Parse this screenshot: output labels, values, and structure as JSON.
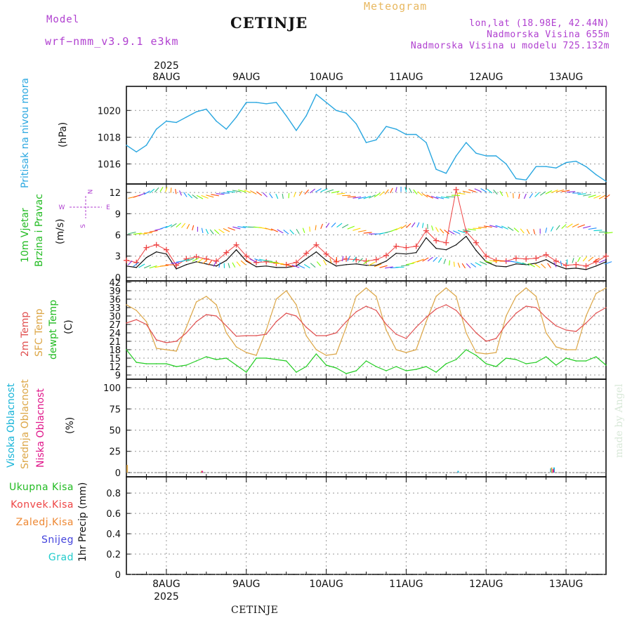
{
  "header": {
    "model_label": "Model",
    "model_version": "wrf−nmm_v3.9.1  e3km",
    "title": "CETINJE",
    "subtitle": "Meteogram",
    "coords": "lon,lat (18.98E, 42.44N)",
    "elevation": "Nadmorska Visina 655m",
    "model_elevation": "Nadmorska Visina u modelu 725.132m"
  },
  "footer": {
    "station": "CETINJE"
  },
  "watermark": "made by Angel",
  "axis": {
    "year": "2025",
    "days": [
      "8AUG",
      "9AUG",
      "10AUG",
      "11AUG",
      "12AUG",
      "13AUG"
    ]
  },
  "colors": {
    "pressure": "#2aa7e0",
    "wind_speed": "#111111",
    "wind_gust": "#ee4444",
    "temp_2m": "#e05050",
    "temp_sfc": "#dca646",
    "dewpoint": "#22cc22",
    "cloud_high": "#18b4d8",
    "cloud_mid": "#dca646",
    "cloud_low": "#e0178a"
  },
  "panels": {
    "pressure": {
      "labels": [
        "Pritisak na nivou mora"
      ],
      "unit": "(hPa)"
    },
    "wind": {
      "labels": [
        "10m Vjetar",
        "Brzina i Pravac"
      ],
      "unit": "(m/s)",
      "compass": [
        "N",
        "W",
        "E",
        "S"
      ]
    },
    "temperature": {
      "labels": [
        "2m Temp",
        "SFC Temp",
        "dewpt Temp"
      ],
      "unit": "(C)"
    },
    "clouds": {
      "labels": [
        "Visoka Oblacnost",
        "Srednja Oblacnost",
        "Niska Oblacnost"
      ],
      "unit": "(%)"
    },
    "precip": {
      "labels": [
        {
          "text": "Ukupna Kisa",
          "color": "#22bb22"
        },
        {
          "text": "Konvek.Kisa",
          "color": "#ee4444"
        },
        {
          "text": "Zaledj.Kisa",
          "color": "#ee8833"
        },
        {
          "text": "Snijeg",
          "color": "#4444dd"
        },
        {
          "text": "Grad",
          "color": "#22cccc"
        }
      ],
      "unit": "1hr Precip (mm)"
    }
  },
  "chart_data": [
    {
      "type": "line",
      "title": "Pritisak na nivou mora",
      "ylabel": "(hPa)",
      "xlabel": "",
      "categories": [
        "8AUG",
        "9AUG",
        "10AUG",
        "11AUG",
        "12AUG",
        "13AUG"
      ],
      "x_unit": "days (0 = 8AUG 00h)",
      "xlim": [
        -0.5,
        5.5
      ],
      "ylim": [
        1014.5,
        1021.8
      ],
      "yticks": [
        1016,
        1018,
        1020
      ],
      "series": [
        {
          "name": "MSLP",
          "x": [
            -0.5,
            -0.375,
            -0.25,
            -0.125,
            0.0,
            0.125,
            0.25,
            0.375,
            0.5,
            0.625,
            0.75,
            0.875,
            1.0,
            1.125,
            1.25,
            1.375,
            1.5,
            1.625,
            1.75,
            1.875,
            2.0,
            2.125,
            2.25,
            2.375,
            2.5,
            2.625,
            2.75,
            2.875,
            3.0,
            3.125,
            3.25,
            3.375,
            3.5,
            3.625,
            3.75,
            3.875,
            4.0,
            4.125,
            4.25,
            4.375,
            4.5,
            4.625,
            4.75,
            4.875,
            5.0,
            5.125,
            5.25,
            5.375,
            5.5
          ],
          "values": [
            1017.4,
            1016.9,
            1017.4,
            1018.6,
            1019.2,
            1019.1,
            1019.5,
            1019.9,
            1020.1,
            1019.2,
            1018.6,
            1019.5,
            1020.6,
            1020.6,
            1020.5,
            1020.6,
            1019.6,
            1018.5,
            1019.6,
            1021.2,
            1020.6,
            1020.0,
            1019.8,
            1019.0,
            1017.6,
            1017.8,
            1018.8,
            1018.6,
            1018.2,
            1018.2,
            1017.6,
            1015.6,
            1015.3,
            1016.6,
            1017.6,
            1016.8,
            1016.6,
            1016.6,
            1016.0,
            1014.9,
            1014.8,
            1015.8,
            1015.8,
            1015.7,
            1016.1,
            1016.2,
            1015.8,
            1015.2,
            1014.7
          ]
        }
      ]
    },
    {
      "type": "line",
      "title": "10m Vjetar Brzina i Pravac",
      "ylabel": "(m/s)",
      "xlabel": "",
      "categories": [
        "8AUG",
        "9AUG",
        "10AUG",
        "11AUG",
        "12AUG",
        "13AUG"
      ],
      "x_unit": "days (0 = 8AUG 00h)",
      "xlim": [
        -0.5,
        5.5
      ],
      "ylim": [
        -0.5,
        13.2
      ],
      "yticks": [
        0,
        3,
        6,
        9,
        12
      ],
      "series": [
        {
          "name": "Wind speed",
          "x": [
            -0.5,
            -0.375,
            -0.25,
            -0.125,
            0.0,
            0.125,
            0.25,
            0.375,
            0.5,
            0.625,
            0.75,
            0.875,
            1.0,
            1.125,
            1.25,
            1.375,
            1.5,
            1.625,
            1.75,
            1.875,
            2.0,
            2.125,
            2.25,
            2.375,
            2.5,
            2.625,
            2.75,
            2.875,
            3.0,
            3.125,
            3.25,
            3.375,
            3.5,
            3.625,
            3.75,
            3.875,
            4.0,
            4.125,
            4.25,
            4.375,
            4.5,
            4.625,
            4.75,
            4.875,
            5.0,
            5.125,
            5.25,
            5.375,
            5.5
          ],
          "values": [
            1.6,
            1.4,
            2.8,
            3.6,
            3.3,
            1.2,
            1.8,
            2.2,
            1.9,
            1.6,
            2.4,
            3.9,
            2.3,
            1.5,
            1.6,
            1.4,
            1.4,
            1.6,
            2.6,
            3.6,
            2.4,
            1.6,
            1.8,
            1.9,
            1.7,
            1.7,
            2.3,
            3.4,
            3.3,
            3.5,
            5.6,
            4.1,
            3.9,
            4.6,
            5.8,
            3.8,
            2.2,
            1.6,
            1.5,
            1.9,
            1.8,
            2.0,
            2.5,
            1.7,
            1.2,
            1.3,
            1.1,
            1.6,
            2.2
          ]
        },
        {
          "name": "Wind gust",
          "x": [
            -0.5,
            -0.375,
            -0.25,
            -0.125,
            0.0,
            0.125,
            0.25,
            0.375,
            0.5,
            0.625,
            0.75,
            0.875,
            1.0,
            1.125,
            1.25,
            1.375,
            1.5,
            1.625,
            1.75,
            1.875,
            2.0,
            2.125,
            2.25,
            2.375,
            2.5,
            2.625,
            2.75,
            2.875,
            3.0,
            3.125,
            3.25,
            3.375,
            3.5,
            3.625,
            3.75,
            3.875,
            4.0,
            4.125,
            4.25,
            4.375,
            4.5,
            4.625,
            4.75,
            4.875,
            5.0,
            5.125,
            5.25,
            5.375,
            5.5
          ],
          "values": [
            2.4,
            2.1,
            4.2,
            4.6,
            3.9,
            1.7,
            2.6,
            2.9,
            2.6,
            2.3,
            3.5,
            4.6,
            3.0,
            2.1,
            2.2,
            2.0,
            1.8,
            2.1,
            3.4,
            4.6,
            3.3,
            2.2,
            2.6,
            2.5,
            2.3,
            2.5,
            3.1,
            4.4,
            4.2,
            4.4,
            6.6,
            5.2,
            4.9,
            12.4,
            6.5,
            4.9,
            3.0,
            2.4,
            2.3,
            2.7,
            2.6,
            2.7,
            3.2,
            2.3,
            1.7,
            1.8,
            1.6,
            2.2,
            3.0
          ]
        }
      ]
    },
    {
      "type": "line",
      "title": "2m Temp / SFC Temp / dewpt Temp",
      "ylabel": "(C)",
      "xlabel": "",
      "categories": [
        "8AUG",
        "9AUG",
        "10AUG",
        "11AUG",
        "12AUG",
        "13AUG"
      ],
      "x_unit": "days (0 = 8AUG 00h)",
      "xlim": [
        -0.5,
        5.5
      ],
      "ylim": [
        7.5,
        42.5
      ],
      "yticks": [
        9,
        12,
        15,
        18,
        21,
        24,
        27,
        30,
        33,
        36,
        39,
        42
      ],
      "series": [
        {
          "name": "2m Temp",
          "x": [
            -0.5,
            -0.375,
            -0.25,
            -0.125,
            0.0,
            0.125,
            0.25,
            0.375,
            0.5,
            0.625,
            0.75,
            0.875,
            1.0,
            1.125,
            1.25,
            1.375,
            1.5,
            1.625,
            1.75,
            1.875,
            2.0,
            2.125,
            2.25,
            2.375,
            2.5,
            2.625,
            2.75,
            2.875,
            3.0,
            3.125,
            3.25,
            3.375,
            3.5,
            3.625,
            3.75,
            3.875,
            4.0,
            4.125,
            4.25,
            4.375,
            4.5,
            4.625,
            4.75,
            4.875,
            5.0,
            5.125,
            5.25,
            5.375,
            5.5
          ],
          "values": [
            27.5,
            28.7,
            27.0,
            21.5,
            20.5,
            21.0,
            24.0,
            28.0,
            30.5,
            30.0,
            26.5,
            22.8,
            23.0,
            23.0,
            23.5,
            28.0,
            31.0,
            30.0,
            26.0,
            23.0,
            23.0,
            24.0,
            28.0,
            31.5,
            33.5,
            32.0,
            27.0,
            23.5,
            22.0,
            26.0,
            29.5,
            32.5,
            34.0,
            32.0,
            28.0,
            24.0,
            21.0,
            22.0,
            27.0,
            31.0,
            33.5,
            33.0,
            29.5,
            26.5,
            25.0,
            24.5,
            27.5,
            31.0,
            33.0
          ]
        },
        {
          "name": "SFC Temp",
          "x": [
            -0.5,
            -0.375,
            -0.25,
            -0.125,
            0.0,
            0.125,
            0.25,
            0.375,
            0.5,
            0.625,
            0.75,
            0.875,
            1.0,
            1.125,
            1.25,
            1.375,
            1.5,
            1.625,
            1.75,
            1.875,
            2.0,
            2.125,
            2.25,
            2.375,
            2.5,
            2.625,
            2.75,
            2.875,
            3.0,
            3.125,
            3.25,
            3.375,
            3.5,
            3.625,
            3.75,
            3.875,
            4.0,
            4.125,
            4.25,
            4.375,
            4.5,
            4.625,
            4.75,
            4.875,
            5.0,
            5.125,
            5.25,
            5.375,
            5.5
          ],
          "values": [
            34.0,
            32.0,
            28.0,
            18.5,
            18.0,
            17.5,
            26.0,
            35.0,
            37.0,
            34.0,
            24.0,
            19.0,
            17.0,
            16.0,
            25.0,
            36.0,
            39.0,
            34.0,
            23.0,
            18.0,
            16.0,
            16.5,
            26.0,
            37.0,
            40.0,
            37.0,
            25.0,
            18.0,
            17.0,
            18.0,
            28.0,
            37.0,
            40.0,
            37.0,
            24.0,
            17.0,
            16.5,
            17.0,
            30.0,
            37.0,
            40.0,
            37.0,
            24.0,
            19.0,
            18.0,
            18.0,
            30.0,
            38.0,
            40.0
          ]
        },
        {
          "name": "dewpt Temp",
          "x": [
            -0.5,
            -0.375,
            -0.25,
            -0.125,
            0.0,
            0.125,
            0.25,
            0.375,
            0.5,
            0.625,
            0.75,
            0.875,
            1.0,
            1.125,
            1.25,
            1.375,
            1.5,
            1.625,
            1.75,
            1.875,
            2.0,
            2.125,
            2.25,
            2.375,
            2.5,
            2.625,
            2.75,
            2.875,
            3.0,
            3.125,
            3.25,
            3.375,
            3.5,
            3.625,
            3.75,
            3.875,
            4.0,
            4.125,
            4.25,
            4.375,
            4.5,
            4.625,
            4.75,
            4.875,
            5.0,
            5.125,
            5.25,
            5.375,
            5.5
          ],
          "values": [
            18.0,
            13.5,
            13.0,
            13.0,
            13.0,
            12.0,
            12.5,
            14.0,
            15.5,
            14.5,
            15.0,
            12.5,
            10.0,
            15.0,
            15.0,
            14.5,
            14.0,
            10.0,
            12.0,
            16.5,
            12.5,
            11.5,
            9.5,
            10.5,
            14.0,
            12.0,
            10.5,
            12.0,
            10.5,
            11.0,
            12.0,
            10.0,
            13.0,
            14.5,
            18.0,
            16.0,
            13.0,
            12.0,
            15.0,
            14.5,
            13.0,
            13.5,
            15.5,
            12.5,
            15.0,
            14.0,
            14.0,
            15.5,
            12.5
          ]
        }
      ]
    },
    {
      "type": "bar",
      "title": "Visoka / Srednja / Niska Oblacnost",
      "ylabel": "(%)",
      "xlabel": "",
      "categories": [
        "8AUG",
        "9AUG",
        "10AUG",
        "11AUG",
        "12AUG",
        "13AUG"
      ],
      "x_unit": "days (0 = 8AUG 00h)",
      "xlim": [
        -0.5,
        5.5
      ],
      "ylim": [
        -5,
        110
      ],
      "yticks": [
        0,
        25,
        50,
        75,
        100
      ],
      "series": [
        {
          "name": "Visoka Oblacnost",
          "x": [
            3.65,
            4.81,
            4.85
          ],
          "values": [
            2,
            5,
            6
          ]
        },
        {
          "name": "Srednja Oblacnost",
          "x": [
            -0.49,
            0.44,
            4.82
          ],
          "values": [
            9,
            2,
            6
          ]
        },
        {
          "name": "Niska Oblacnost",
          "x": [
            0.45,
            4.84
          ],
          "values": [
            2,
            4
          ]
        }
      ]
    },
    {
      "type": "bar",
      "title": "1hr Precip",
      "ylabel": "1hr Precip (mm)",
      "xlabel": "",
      "categories": [
        "8AUG",
        "9AUG",
        "10AUG",
        "11AUG",
        "12AUG",
        "13AUG"
      ],
      "x_unit": "days (0 = 8AUG 00h)",
      "xlim": [
        -0.5,
        5.5
      ],
      "ylim": [
        0,
        0.96
      ],
      "yticks": [
        0,
        0.2,
        0.4,
        0.6,
        0.8
      ],
      "series": [
        {
          "name": "Ukupna Kisa",
          "x": [],
          "values": []
        },
        {
          "name": "Konvek.Kisa",
          "x": [],
          "values": []
        },
        {
          "name": "Zaledj.Kisa",
          "x": [],
          "values": []
        },
        {
          "name": "Snijeg",
          "x": [],
          "values": []
        },
        {
          "name": "Grad",
          "x": [],
          "values": []
        }
      ]
    }
  ]
}
